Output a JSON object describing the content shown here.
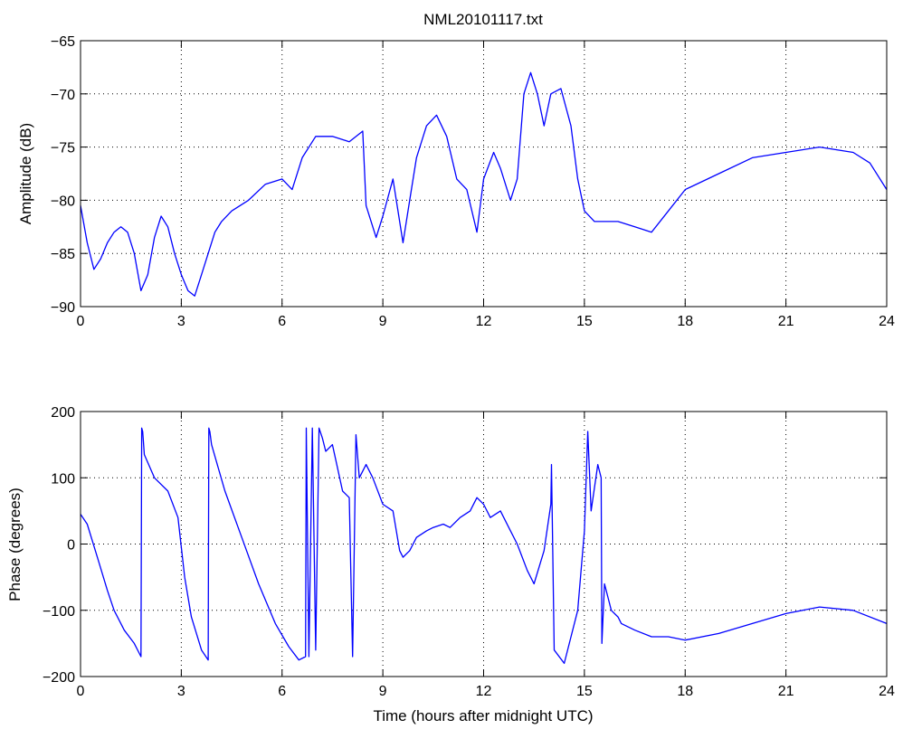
{
  "figure": {
    "title": "NML20101117.txt",
    "line_color": "#0000ff"
  },
  "chart_data": [
    {
      "type": "line",
      "title": "NML20101117.txt",
      "xlabel": "",
      "ylabel": "Amplitude (dB)",
      "xlim": [
        0,
        24
      ],
      "ylim": [
        -90,
        -65
      ],
      "xticks": [
        0,
        3,
        6,
        9,
        12,
        15,
        18,
        21,
        24
      ],
      "yticks": [
        -90,
        -85,
        -80,
        -75,
        -70,
        -65
      ],
      "grid": true,
      "series": [
        {
          "color": "#0000ff",
          "x": [
            0,
            0.2,
            0.4,
            0.6,
            0.8,
            1.0,
            1.2,
            1.4,
            1.6,
            1.8,
            2.0,
            2.2,
            2.4,
            2.6,
            2.8,
            3.0,
            3.2,
            3.4,
            3.6,
            3.8,
            4.0,
            4.2,
            4.5,
            5.0,
            5.5,
            6.0,
            6.3,
            6.6,
            7.0,
            7.5,
            8.0,
            8.4,
            8.5,
            8.8,
            9.0,
            9.3,
            9.6,
            9.8,
            10.0,
            10.3,
            10.6,
            10.9,
            11.2,
            11.5,
            11.8,
            12.0,
            12.3,
            12.5,
            12.8,
            13.0,
            13.2,
            13.4,
            13.6,
            13.8,
            14.0,
            14.3,
            14.6,
            14.8,
            15.0,
            15.3,
            15.6,
            16.0,
            16.5,
            17.0,
            17.5,
            18.0,
            19.0,
            20.0,
            21.0,
            22.0,
            23.0,
            23.5,
            24.0
          ],
          "y": [
            -80.5,
            -84,
            -86.5,
            -85.5,
            -84,
            -83,
            -82.5,
            -83,
            -85,
            -88.5,
            -87,
            -83.5,
            -81.5,
            -82.5,
            -85,
            -87,
            -88.5,
            -89,
            -87,
            -85,
            -83,
            -82,
            -81,
            -80,
            -78.5,
            -78,
            -79,
            -76,
            -74,
            -74,
            -74.5,
            -73.5,
            -80.5,
            -83.5,
            -81.5,
            -78,
            -84,
            -80,
            -76,
            -73,
            -72,
            -74,
            -78,
            -79,
            -83,
            -78,
            -75.5,
            -77,
            -80,
            -78,
            -70,
            -68,
            -70,
            -73,
            -70,
            -69.5,
            -73,
            -78,
            -81,
            -82,
            -82,
            -82,
            -82.5,
            -83,
            -81,
            -79,
            -77.5,
            -76,
            -75.5,
            -75,
            -75.5,
            -76.5,
            -79
          ]
        }
      ]
    },
    {
      "type": "line",
      "title": "",
      "xlabel": "Time (hours after midnight UTC)",
      "ylabel": "Phase (degrees)",
      "xlim": [
        0,
        24
      ],
      "ylim": [
        -200,
        200
      ],
      "xticks": [
        0,
        3,
        6,
        9,
        12,
        15,
        18,
        21,
        24
      ],
      "yticks": [
        -200,
        -100,
        0,
        100,
        200
      ],
      "grid": true,
      "series": [
        {
          "color": "#0000ff",
          "x": [
            0,
            0.2,
            0.5,
            0.8,
            1.0,
            1.3,
            1.6,
            1.8,
            1.82,
            1.85,
            1.9,
            2.2,
            2.6,
            2.9,
            3.1,
            3.3,
            3.6,
            3.8,
            3.82,
            3.85,
            3.9,
            4.3,
            4.8,
            5.3,
            5.8,
            6.2,
            6.5,
            6.7,
            6.72,
            6.8,
            6.9,
            7.0,
            7.1,
            7.2,
            7.3,
            7.5,
            7.8,
            8.0,
            8.1,
            8.2,
            8.3,
            8.5,
            8.7,
            9.0,
            9.3,
            9.5,
            9.6,
            9.8,
            10.0,
            10.3,
            10.5,
            10.8,
            11.0,
            11.3,
            11.6,
            11.8,
            12.0,
            12.2,
            12.5,
            12.8,
            13.0,
            13.3,
            13.5,
            13.8,
            14.0,
            14.02,
            14.1,
            14.4,
            14.8,
            15.0,
            15.1,
            15.2,
            15.4,
            15.5,
            15.52,
            15.6,
            15.8,
            16.0,
            16.1,
            16.5,
            17.0,
            17.5,
            18.0,
            19.0,
            20.0,
            21.0,
            22.0,
            23.0,
            24.0
          ],
          "y": [
            45,
            30,
            -20,
            -70,
            -100,
            -130,
            -150,
            -170,
            175,
            170,
            135,
            100,
            80,
            40,
            -50,
            -110,
            -160,
            -175,
            175,
            170,
            150,
            80,
            10,
            -60,
            -120,
            -155,
            -175,
            -170,
            175,
            -170,
            175,
            -160,
            175,
            160,
            140,
            150,
            80,
            70,
            -170,
            165,
            100,
            120,
            100,
            60,
            50,
            -10,
            -20,
            -10,
            10,
            20,
            25,
            30,
            25,
            40,
            50,
            70,
            60,
            40,
            50,
            20,
            0,
            -40,
            -60,
            -10,
            60,
            120,
            -160,
            -180,
            -100,
            20,
            170,
            50,
            120,
            100,
            -150,
            -60,
            -100,
            -110,
            -120,
            -130,
            -140,
            -140,
            -145,
            -135,
            -120,
            -105,
            -95,
            -100,
            -120
          ]
        }
      ]
    }
  ]
}
